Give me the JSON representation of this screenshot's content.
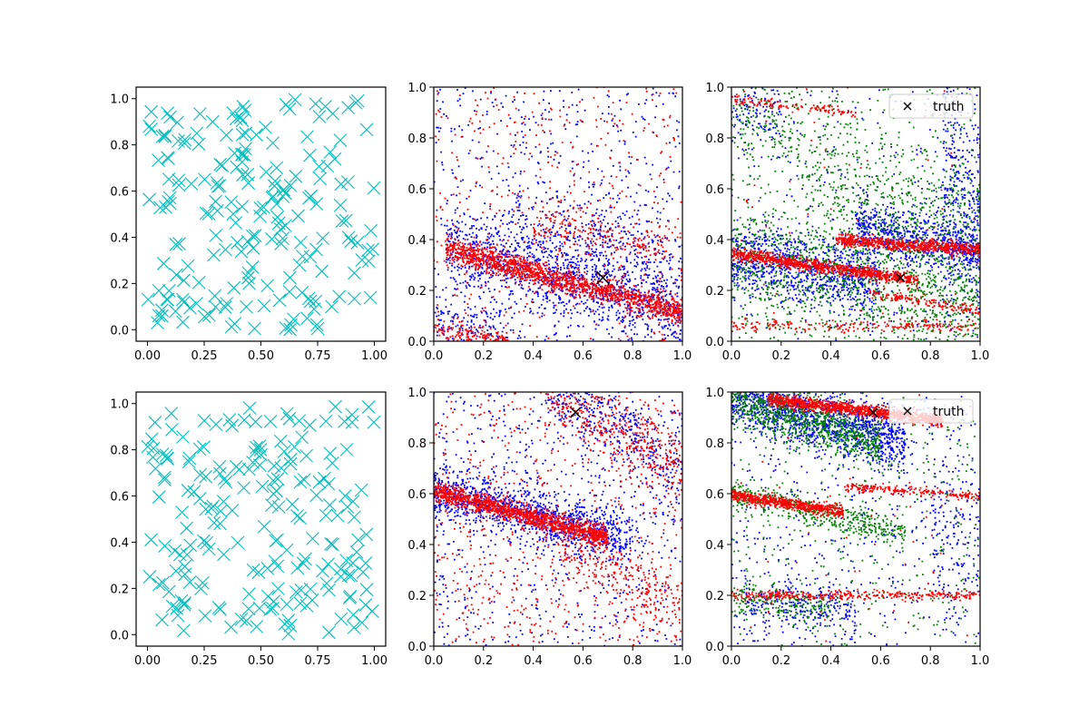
{
  "figure": {
    "facecolor": "#ffffff"
  },
  "chart_data": [
    {
      "panel": "top-left",
      "type": "scatter",
      "title": "",
      "xlabel": "",
      "ylabel": "",
      "xlim": [
        -0.05,
        1.05
      ],
      "ylim": [
        -0.05,
        1.05
      ],
      "xticks": [
        "0.00",
        "0.25",
        "0.50",
        "0.75",
        "1.00"
      ],
      "xtick_values": [
        0,
        0.25,
        0.5,
        0.75,
        1.0
      ],
      "yticks": [
        "0.0",
        "0.2",
        "0.4",
        "0.6",
        "0.8",
        "1.0"
      ],
      "ytick_values": [
        0,
        0.2,
        0.4,
        0.6,
        0.8,
        1.0
      ],
      "series": [
        {
          "marker": "x",
          "color": "#00bfbf",
          "count": 200,
          "pattern": "uniform",
          "seed": 11
        }
      ]
    },
    {
      "panel": "top-middle",
      "type": "scatter",
      "title": "",
      "xlabel": "",
      "ylabel": "",
      "xlim": [
        0,
        1
      ],
      "ylim": [
        0,
        1
      ],
      "xticks": [
        "0.0",
        "0.2",
        "0.4",
        "0.6",
        "0.8",
        "1.0"
      ],
      "xtick_values": [
        0,
        0.2,
        0.4,
        0.6,
        0.8,
        1.0
      ],
      "yticks": [
        "0.0",
        "0.2",
        "0.4",
        "0.6",
        "0.8",
        "1.0"
      ],
      "ytick_values": [
        0,
        0.2,
        0.4,
        0.6,
        0.8,
        1.0
      ],
      "series": [
        {
          "marker": "dot",
          "color": "#0000ff",
          "seed": 21,
          "bands": [
            {
              "x0": 0.05,
              "x1": 1.0,
              "y0": 0.4,
              "slope": -0.28,
              "width": 0.08,
              "count": 1100
            },
            {
              "x0": 0.3,
              "x1": 1.0,
              "y0": 0.6,
              "slope": -0.3,
              "width": 0.08,
              "count": 260
            },
            {
              "x0": 0.0,
              "x1": 0.35,
              "y0": 0.08,
              "slope": -0.1,
              "width": 0.07,
              "count": 140
            }
          ],
          "uniform": 650
        },
        {
          "marker": "dot",
          "color": "#ff0000",
          "seed": 31,
          "bands": [
            {
              "x0": 0.05,
              "x1": 1.0,
              "y0": 0.375,
              "slope": -0.26,
              "width": 0.025,
              "count": 1500
            },
            {
              "x0": 0.4,
              "x1": 0.95,
              "y0": 0.5,
              "slope": -0.12,
              "width": 0.04,
              "count": 190
            },
            {
              "x0": 0.0,
              "x1": 0.3,
              "y0": 0.04,
              "slope": -0.1,
              "width": 0.02,
              "count": 150
            },
            {
              "x0": 0.7,
              "x1": 1.0,
              "y0": 0.15,
              "slope": -0.25,
              "width": 0.02,
              "count": 120
            }
          ],
          "uniform": 480
        }
      ],
      "truth": {
        "x": 0.68,
        "y": 0.25,
        "marker": "x",
        "color": "#000000",
        "size": 14,
        "in_legend": false
      }
    },
    {
      "panel": "top-right",
      "type": "scatter",
      "title": "",
      "xlabel": "",
      "ylabel": "",
      "xlim": [
        0,
        1
      ],
      "ylim": [
        0,
        1
      ],
      "xticks": [
        "0.0",
        "0.2",
        "0.4",
        "0.6",
        "0.8",
        "1.0"
      ],
      "xtick_values": [
        0,
        0.2,
        0.4,
        0.6,
        0.8,
        1.0
      ],
      "yticks": [
        "0.0",
        "0.2",
        "0.4",
        "0.6",
        "0.8",
        "1.0"
      ],
      "ytick_values": [
        0,
        0.2,
        0.4,
        0.6,
        0.8,
        1.0
      ],
      "series": [
        {
          "marker": "dot",
          "color": "#0000ff",
          "seed": 41,
          "bands": [
            {
              "x0": 0.0,
              "x1": 0.6,
              "y0": 0.33,
              "slope": -0.15,
              "width": 0.07,
              "count": 900
            },
            {
              "x0": 0.5,
              "x1": 1.0,
              "y0": 0.55,
              "slope": -0.2,
              "width": 0.06,
              "count": 700
            },
            {
              "x0": 0.85,
              "x1": 1.0,
              "y0": 1.5,
              "slope": -1.0,
              "width": 0.25,
              "count": 350
            },
            {
              "x0": 0.0,
              "x1": 0.2,
              "y0": 0.88,
              "slope": 0.0,
              "width": 0.06,
              "count": 100
            }
          ],
          "uniform": 300
        },
        {
          "marker": "dot",
          "color": "#008000",
          "seed": 51,
          "bands": [
            {
              "x0": 0.0,
              "x1": 1.0,
              "y0": 0.32,
              "slope": -0.17,
              "width": 0.12,
              "count": 1000
            },
            {
              "x0": 0.3,
              "x1": 1.0,
              "y0": 0.75,
              "slope": -0.35,
              "width": 0.15,
              "count": 500
            },
            {
              "x0": 0.0,
              "x1": 0.3,
              "y0": 0.85,
              "slope": 0.0,
              "width": 0.08,
              "count": 120
            }
          ],
          "uniform": 500
        },
        {
          "marker": "dot",
          "color": "#ff0000",
          "seed": 61,
          "bands": [
            {
              "x0": 0.0,
              "x1": 0.75,
              "y0": 0.345,
              "slope": -0.14,
              "width": 0.012,
              "count": 900
            },
            {
              "x0": 0.42,
              "x1": 1.0,
              "y0": 0.43,
              "slope": -0.07,
              "width": 0.012,
              "count": 700
            },
            {
              "x0": 0.0,
              "x1": 1.0,
              "y0": 0.06,
              "slope": 0.0,
              "width": 0.012,
              "count": 200
            },
            {
              "x0": 0.0,
              "x1": 0.5,
              "y0": 0.95,
              "slope": -0.1,
              "width": 0.01,
              "count": 120
            },
            {
              "x0": 0.55,
              "x1": 1.0,
              "y0": 0.28,
              "slope": -0.16,
              "width": 0.01,
              "count": 150
            }
          ],
          "uniform": 60
        }
      ],
      "truth": {
        "x": 0.68,
        "y": 0.25,
        "marker": "x",
        "color": "#000000",
        "size": 9,
        "in_legend": true
      },
      "legend": {
        "loc": "upper right",
        "entries": [
          {
            "label": "truth",
            "marker": "x",
            "color": "#000000"
          }
        ]
      }
    },
    {
      "panel": "bottom-left",
      "type": "scatter",
      "title": "",
      "xlabel": "",
      "ylabel": "",
      "xlim": [
        -0.05,
        1.05
      ],
      "ylim": [
        -0.05,
        1.05
      ],
      "xticks": [
        "0.00",
        "0.25",
        "0.50",
        "0.75",
        "1.00"
      ],
      "xtick_values": [
        0,
        0.25,
        0.5,
        0.75,
        1.0
      ],
      "yticks": [
        "0.0",
        "0.2",
        "0.4",
        "0.6",
        "0.8",
        "1.0"
      ],
      "ytick_values": [
        0,
        0.2,
        0.4,
        0.6,
        0.8,
        1.0
      ],
      "series": [
        {
          "marker": "x",
          "color": "#00bfbf",
          "count": 200,
          "pattern": "uniform",
          "seed": 17
        }
      ]
    },
    {
      "panel": "bottom-middle",
      "type": "scatter",
      "title": "",
      "xlabel": "",
      "ylabel": "",
      "xlim": [
        0,
        1
      ],
      "ylim": [
        0,
        1
      ],
      "xticks": [
        "0.0",
        "0.2",
        "0.4",
        "0.6",
        "0.8",
        "1.0"
      ],
      "xtick_values": [
        0,
        0.2,
        0.4,
        0.6,
        0.8,
        1.0
      ],
      "yticks": [
        "0.0",
        "0.2",
        "0.4",
        "0.6",
        "0.8",
        "1.0"
      ],
      "ytick_values": [
        0,
        0.2,
        0.4,
        0.6,
        0.8,
        1.0
      ],
      "series": [
        {
          "marker": "dot",
          "color": "#0000ff",
          "seed": 71,
          "bands": [
            {
              "x0": 0.0,
              "x1": 0.8,
              "y0": 0.62,
              "slope": -0.26,
              "width": 0.05,
              "count": 1100
            },
            {
              "x0": 0.45,
              "x1": 1.0,
              "y0": 1.3,
              "slope": -0.6,
              "width": 0.08,
              "count": 400
            }
          ],
          "uniform": 700
        },
        {
          "marker": "dot",
          "color": "#ff0000",
          "seed": 81,
          "bands": [
            {
              "x0": 0.0,
              "x1": 0.7,
              "y0": 0.61,
              "slope": -0.26,
              "width": 0.02,
              "count": 1300
            },
            {
              "x0": 0.45,
              "x1": 1.0,
              "y0": 1.3,
              "slope": -0.6,
              "width": 0.07,
              "count": 450
            },
            {
              "x0": 0.5,
              "x1": 1.0,
              "y0": 0.65,
              "slope": -0.5,
              "width": 0.06,
              "count": 250
            }
          ],
          "uniform": 650
        }
      ],
      "truth": {
        "x": 0.57,
        "y": 0.92,
        "marker": "x",
        "color": "#000000",
        "size": 11,
        "in_legend": false
      }
    },
    {
      "panel": "bottom-right",
      "type": "scatter",
      "title": "",
      "xlabel": "",
      "ylabel": "",
      "xlim": [
        0,
        1
      ],
      "ylim": [
        0,
        1
      ],
      "xticks": [
        "0.0",
        "0.2",
        "0.4",
        "0.6",
        "0.8",
        "1.0"
      ],
      "xtick_values": [
        0,
        0.2,
        0.4,
        0.6,
        0.8,
        1.0
      ],
      "yticks": [
        "0.0",
        "0.2",
        "0.4",
        "0.6",
        "0.8",
        "1.0"
      ],
      "ytick_values": [
        0,
        0.2,
        0.4,
        0.6,
        0.8,
        1.0
      ],
      "series": [
        {
          "marker": "dot",
          "color": "#0000ff",
          "seed": 91,
          "bands": [
            {
              "x0": 0.0,
              "x1": 0.7,
              "y0": 0.98,
              "slope": -0.25,
              "width": 0.06,
              "count": 1300
            },
            {
              "x0": 0.05,
              "x1": 0.5,
              "y0": 0.18,
              "slope": -0.1,
              "width": 0.05,
              "count": 250
            },
            {
              "x0": 0.8,
              "x1": 1.0,
              "y0": 0.45,
              "slope": 0.0,
              "width": 0.15,
              "count": 150
            }
          ],
          "uniform": 500
        },
        {
          "marker": "dot",
          "color": "#008000",
          "seed": 101,
          "bands": [
            {
              "x0": 0.0,
              "x1": 0.6,
              "y0": 0.98,
              "slope": -0.3,
              "width": 0.05,
              "count": 900
            },
            {
              "x0": 0.0,
              "x1": 0.7,
              "y0": 0.6,
              "slope": -0.22,
              "width": 0.03,
              "count": 450
            },
            {
              "x0": 0.0,
              "x1": 0.4,
              "y0": 0.19,
              "slope": -0.1,
              "width": 0.03,
              "count": 200
            }
          ],
          "uniform": 400
        },
        {
          "marker": "dot",
          "color": "#ff0000",
          "seed": 111,
          "bands": [
            {
              "x0": 0.15,
              "x1": 0.85,
              "y0": 0.99,
              "slope": -0.12,
              "width": 0.012,
              "count": 1100
            },
            {
              "x0": 0.0,
              "x1": 0.45,
              "y0": 0.595,
              "slope": -0.15,
              "width": 0.012,
              "count": 600
            },
            {
              "x0": 0.45,
              "x1": 1.0,
              "y0": 0.66,
              "slope": -0.07,
              "width": 0.008,
              "count": 200
            },
            {
              "x0": 0.0,
              "x1": 1.0,
              "y0": 0.2,
              "slope": 0.0,
              "width": 0.01,
              "count": 350
            }
          ],
          "uniform": 50
        }
      ],
      "truth": {
        "x": 0.57,
        "y": 0.92,
        "marker": "x",
        "color": "#000000",
        "size": 9,
        "in_legend": true
      },
      "legend": {
        "loc": "upper right",
        "entries": [
          {
            "label": "truth",
            "marker": "x",
            "color": "#000000"
          }
        ]
      }
    }
  ]
}
